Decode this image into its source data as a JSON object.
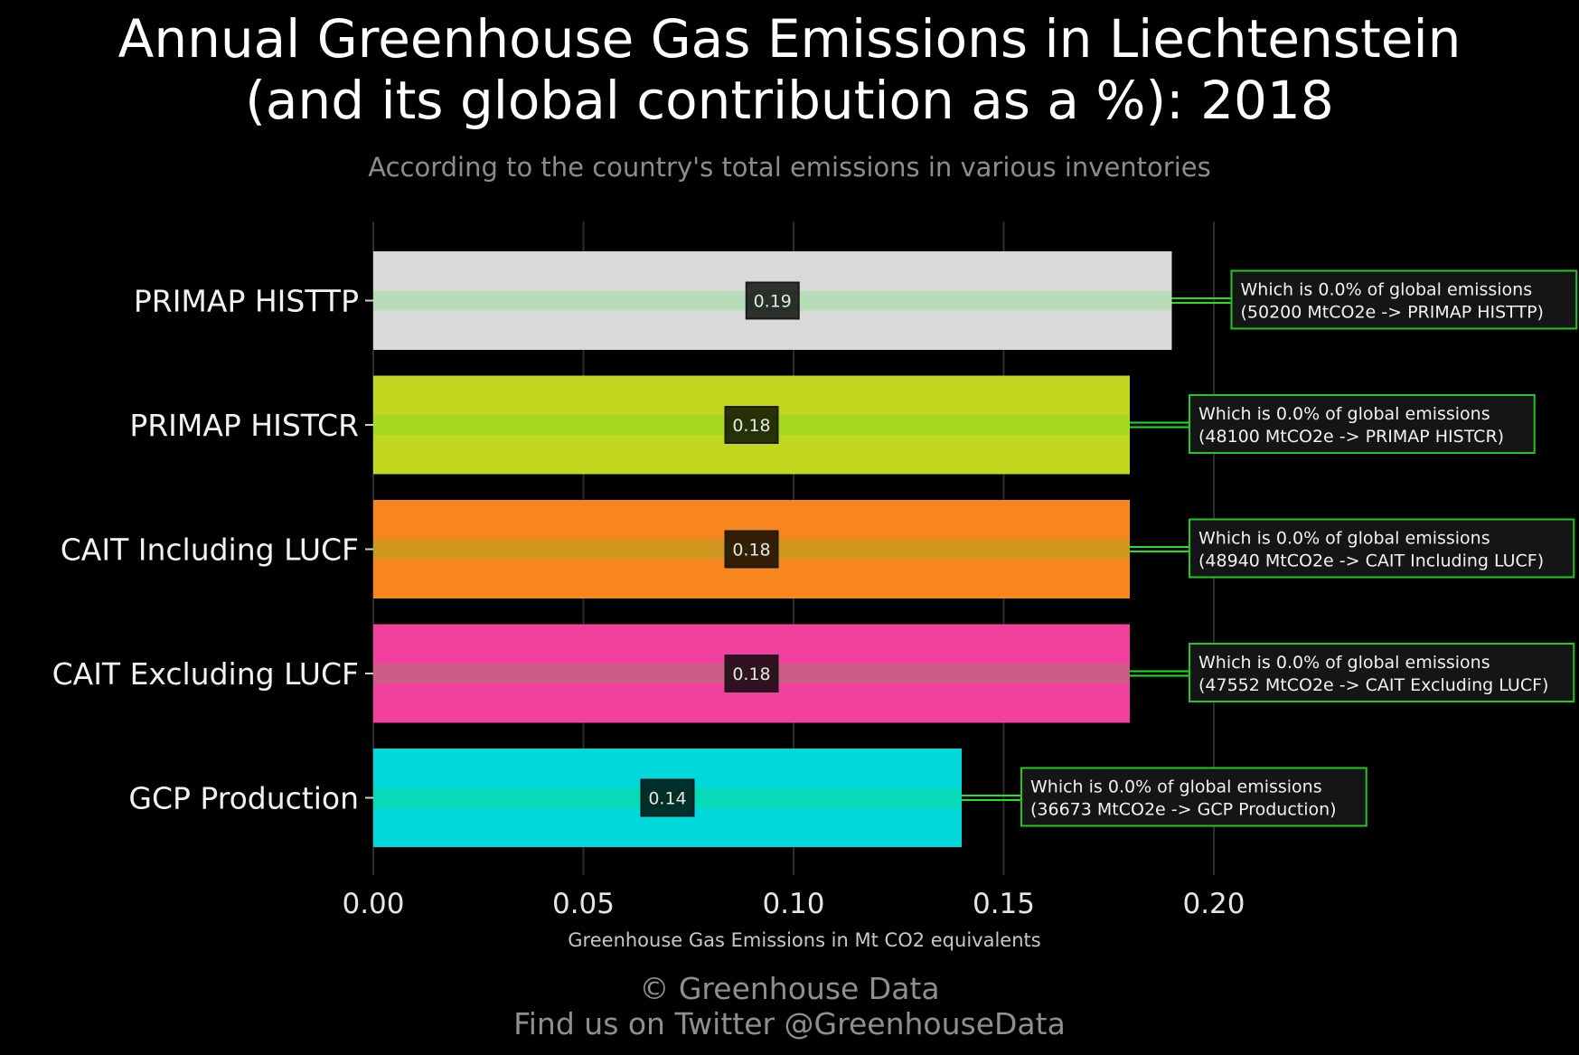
{
  "header": {
    "title_line_1": "Annual Greenhouse Gas Emissions in Liechtenstein",
    "title_line_2": "(and its global contribution as a %): 2018",
    "subtitle": "According to the country's total emissions in various inventories"
  },
  "footer": {
    "copyright": "© Greenhouse Data",
    "twitter": "Find us on Twitter @GreenhouseData"
  },
  "chart_data": {
    "type": "bar",
    "orientation": "horizontal",
    "title": "Annual Greenhouse Gas Emissions in Liechtenstein (and its global contribution as a %): 2018",
    "subtitle": "According to the country's total emissions in various inventories",
    "xlabel": "Greenhouse Gas Emissions in Mt CO2 equivalents",
    "ylabel": "",
    "xlim": [
      0,
      0.2
    ],
    "xticks": [
      0,
      0.05,
      0.1,
      0.15,
      0.2
    ],
    "xtick_labels": [
      "0.00",
      "0.05",
      "0.10",
      "0.15",
      "0.20"
    ],
    "grid": true,
    "legend": "none",
    "categories": [
      "PRIMAP HISTTP",
      "PRIMAP HISTCR",
      "CAIT Including LUCF",
      "CAIT Excluding LUCF",
      "GCP Production"
    ],
    "values": [
      0.19,
      0.18,
      0.18,
      0.18,
      0.14
    ],
    "value_labels": [
      "0.19",
      "0.18",
      "0.18",
      "0.18",
      "0.14"
    ],
    "colors": [
      "#d9d9d9",
      "#c2d81e",
      "#f8861f",
      "#f2409e",
      "#00d8d9"
    ],
    "annotations": [
      {
        "line1": "Which is 0.0% of global emissions",
        "line2": "(50200 MtCO2e -> PRIMAP HISTTP)"
      },
      {
        "line1": "Which is 0.0% of global emissions",
        "line2": "(48100 MtCO2e -> PRIMAP HISTCR)"
      },
      {
        "line1": "Which is 0.0% of global emissions",
        "line2": "(48940 MtCO2e -> CAIT Including LUCF)"
      },
      {
        "line1": "Which is 0.0% of global emissions",
        "line2": "(47552 MtCO2e -> CAIT Excluding LUCF)"
      },
      {
        "line1": "Which is 0.0% of global emissions",
        "line2": "(36673 MtCO2e -> GCP Production)"
      }
    ],
    "annotation_border_color": "#22c722",
    "glow_line_color": "#1fe51f"
  }
}
